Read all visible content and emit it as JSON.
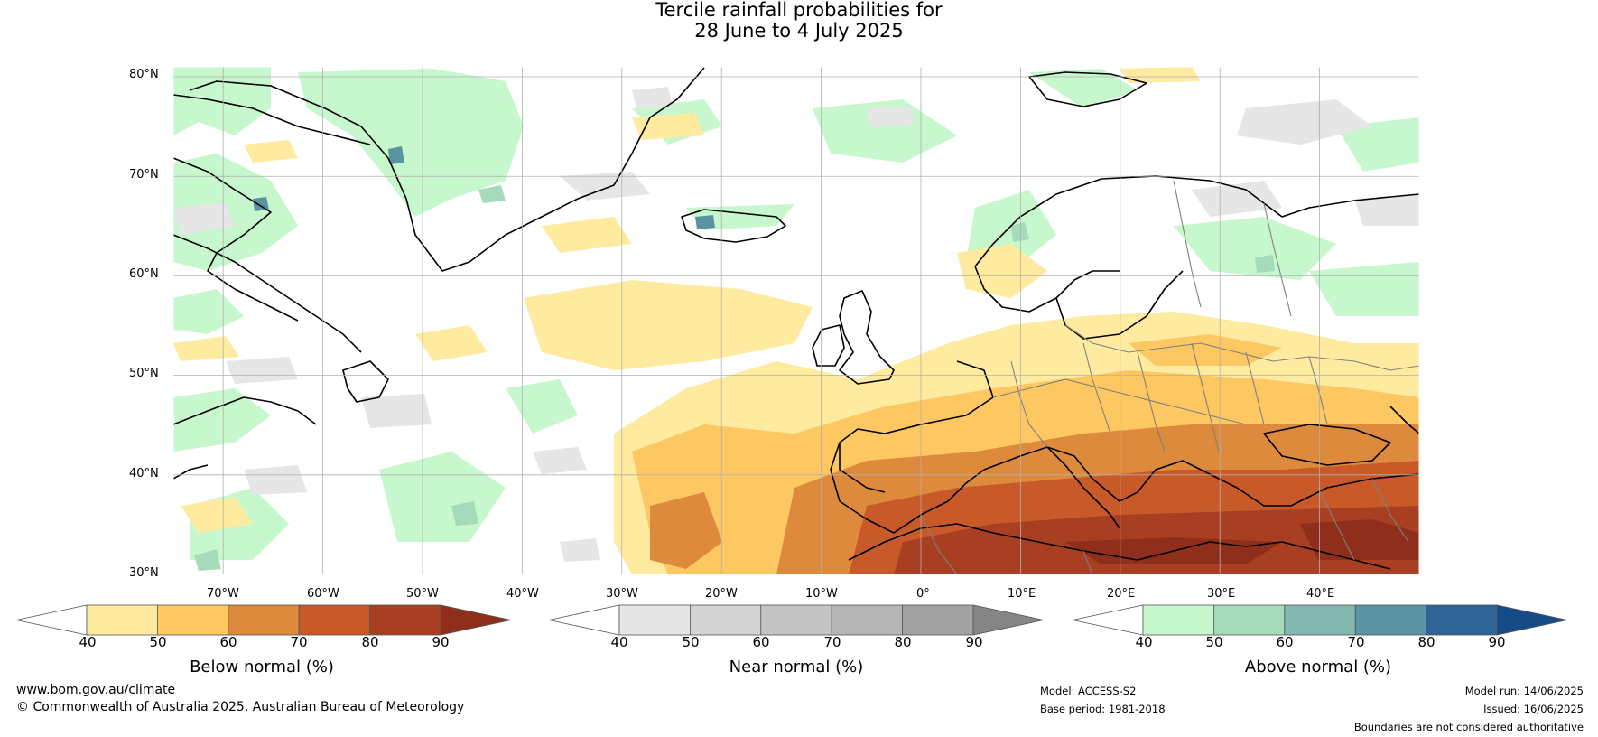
{
  "title_line1": "Tercile rainfall probabilities for",
  "title_line2": "28 June to 4 July 2025",
  "map": {
    "lat_labels": [
      "80°N",
      "70°N",
      "60°N",
      "50°N",
      "40°N",
      "30°N"
    ],
    "lon_labels": [
      "70°W",
      "60°W",
      "50°W",
      "40°W",
      "30°W",
      "20°W",
      "10°W",
      "0°",
      "10°E",
      "20°E",
      "30°E",
      "40°E"
    ],
    "lat_range": [
      30,
      81
    ],
    "lon_range": [
      -75,
      50
    ]
  },
  "colorbars": [
    {
      "label": "Below normal (%)",
      "ticks": [
        "40",
        "50",
        "60",
        "70",
        "80",
        "90"
      ],
      "colors": [
        "#ffffff",
        "#feeb9f",
        "#fdc862",
        "#dd8a3c",
        "#c85a2a",
        "#a83f22",
        "#8f2f1b"
      ]
    },
    {
      "label": "Near normal (%)",
      "ticks": [
        "40",
        "50",
        "60",
        "70",
        "80",
        "90"
      ],
      "colors": [
        "#ffffff",
        "#e6e6e6",
        "#d3d3d3",
        "#c4c4c4",
        "#b5b5b5",
        "#a2a2a2",
        "#858585"
      ]
    },
    {
      "label": "Above normal (%)",
      "ticks": [
        "40",
        "50",
        "60",
        "70",
        "80",
        "90"
      ],
      "colors": [
        "#ffffff",
        "#c7f8cd",
        "#a5dbb9",
        "#83b8b1",
        "#5a94a2",
        "#2f6496",
        "#164c85"
      ]
    }
  ],
  "footer": {
    "website": "www.bom.gov.au/climate",
    "copyright": "© Commonwealth of Australia 2025, Australian Bureau of Meteorology",
    "model": "Model: ACCESS-S2",
    "base_period": "Base period: 1981-2018",
    "model_run": "Model run: 14/06/2025",
    "issued": "Issued: 16/06/2025",
    "disclaimer": "Boundaries are not considered authoritative"
  }
}
